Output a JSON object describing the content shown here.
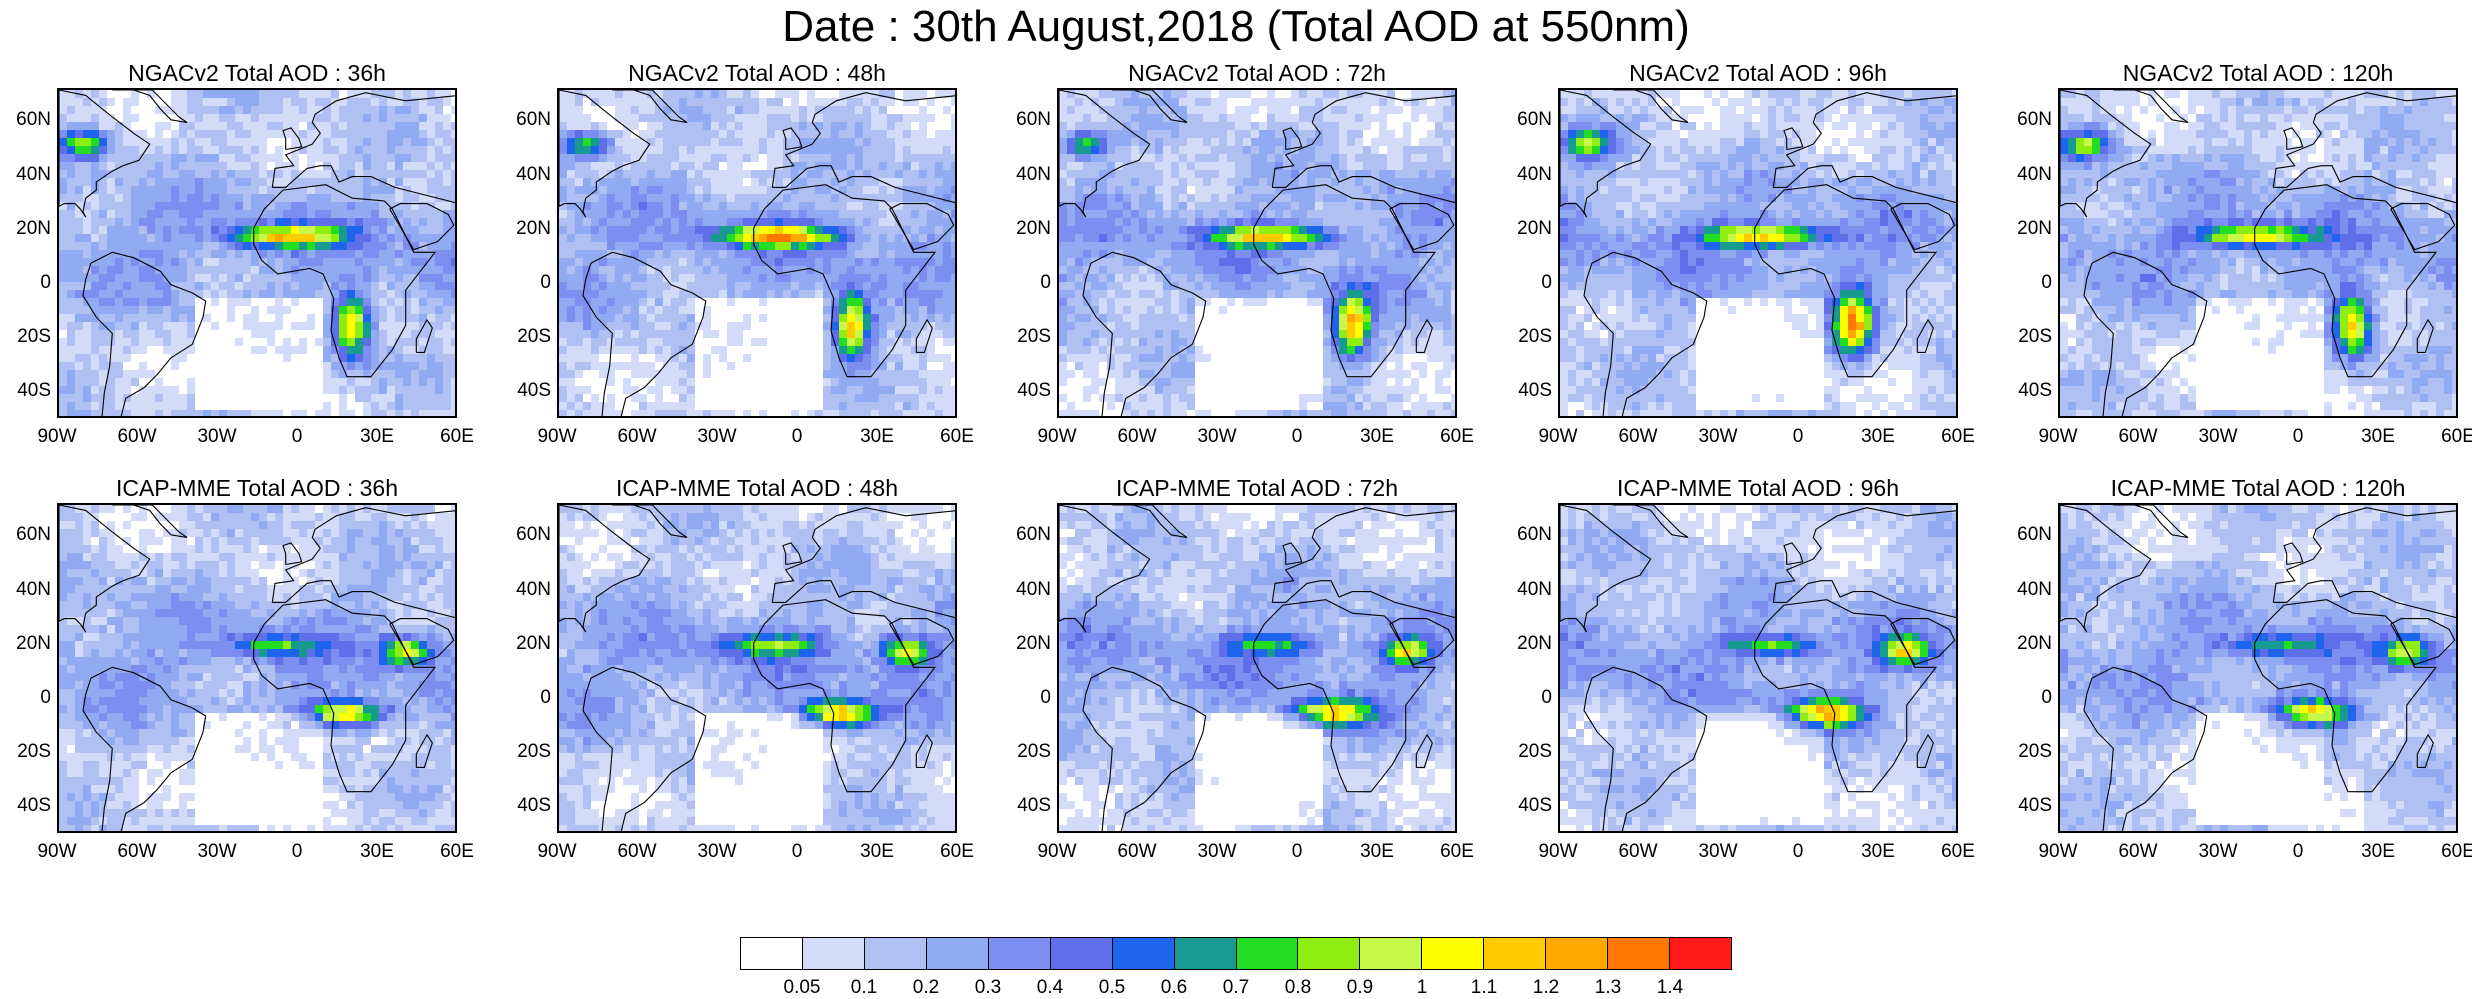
{
  "title": "Date : 30th August,2018 (Total AOD at 550nm)",
  "panels": [
    {
      "title": "NGACv2 Total AOD : 36h",
      "model": "NGACv2",
      "lead": "36h",
      "row": 0,
      "col": 0
    },
    {
      "title": "NGACv2 Total AOD : 48h",
      "model": "NGACv2",
      "lead": "48h",
      "row": 0,
      "col": 1
    },
    {
      "title": "NGACv2 Total AOD : 72h",
      "model": "NGACv2",
      "lead": "72h",
      "row": 0,
      "col": 2
    },
    {
      "title": "NGACv2 Total AOD : 96h",
      "model": "NGACv2",
      "lead": "96h",
      "row": 0,
      "col": 3
    },
    {
      "title": "NGACv2 Total AOD : 120h",
      "model": "NGACv2",
      "lead": "120h",
      "row": 0,
      "col": 4
    },
    {
      "title": "ICAP-MME Total AOD : 36h",
      "model": "ICAP-MME",
      "lead": "36h",
      "row": 1,
      "col": 0
    },
    {
      "title": "ICAP-MME Total AOD : 48h",
      "model": "ICAP-MME",
      "lead": "48h",
      "row": 1,
      "col": 1
    },
    {
      "title": "ICAP-MME Total AOD : 72h",
      "model": "ICAP-MME",
      "lead": "72h",
      "row": 1,
      "col": 2
    },
    {
      "title": "ICAP-MME Total AOD : 96h",
      "model": "ICAP-MME",
      "lead": "96h",
      "row": 1,
      "col": 3
    },
    {
      "title": "ICAP-MME Total AOD : 120h",
      "model": "ICAP-MME",
      "lead": "120h",
      "row": 1,
      "col": 4
    }
  ],
  "axes": {
    "lat_ticks": [
      "60N",
      "40N",
      "20N",
      "0",
      "20S",
      "40S"
    ],
    "lat_values": [
      60,
      40,
      20,
      0,
      -20,
      -40
    ],
    "lon_ticks": [
      "90W",
      "60W",
      "30W",
      "0",
      "30E",
      "60E"
    ],
    "lon_values": [
      -90,
      -60,
      -30,
      0,
      30,
      60
    ],
    "lat_range": [
      -50,
      72
    ],
    "lon_range": [
      -90,
      60
    ]
  },
  "colorbar": {
    "labels": [
      "0.05",
      "0.1",
      "0.2",
      "0.3",
      "0.4",
      "0.5",
      "0.6",
      "0.7",
      "0.8",
      "0.9",
      "1",
      "1.1",
      "1.2",
      "1.3",
      "1.4"
    ],
    "colors": [
      "#ffffff",
      "#d2dbf7",
      "#b0c0f3",
      "#91abf2",
      "#7c8ef0",
      "#5f6fea",
      "#1f64ed",
      "#179a8f",
      "#22dd22",
      "#8fee11",
      "#c8f84a",
      "#ffff00",
      "#ffcb00",
      "#ffa800",
      "#ff7700",
      "#ff1a1a"
    ]
  },
  "aerosol_features": {
    "ngac": [
      {
        "lon": -5,
        "lat": 18,
        "rx": 22,
        "ry": 4,
        "peak": 10
      },
      {
        "lon": 20,
        "lat": -15,
        "rx": 7,
        "ry": 12,
        "peak": 11
      },
      {
        "lon": -80,
        "lat": 52,
        "rx": 9,
        "ry": 5,
        "peak": 8
      }
    ],
    "icap": [
      {
        "lon": 18,
        "lat": -5,
        "rx": 14,
        "ry": 5,
        "peak": 11
      },
      {
        "lon": 40,
        "lat": 18,
        "rx": 9,
        "ry": 5,
        "peak": 9
      },
      {
        "lon": -10,
        "lat": 20,
        "rx": 18,
        "ry": 4,
        "peak": 6
      }
    ]
  }
}
